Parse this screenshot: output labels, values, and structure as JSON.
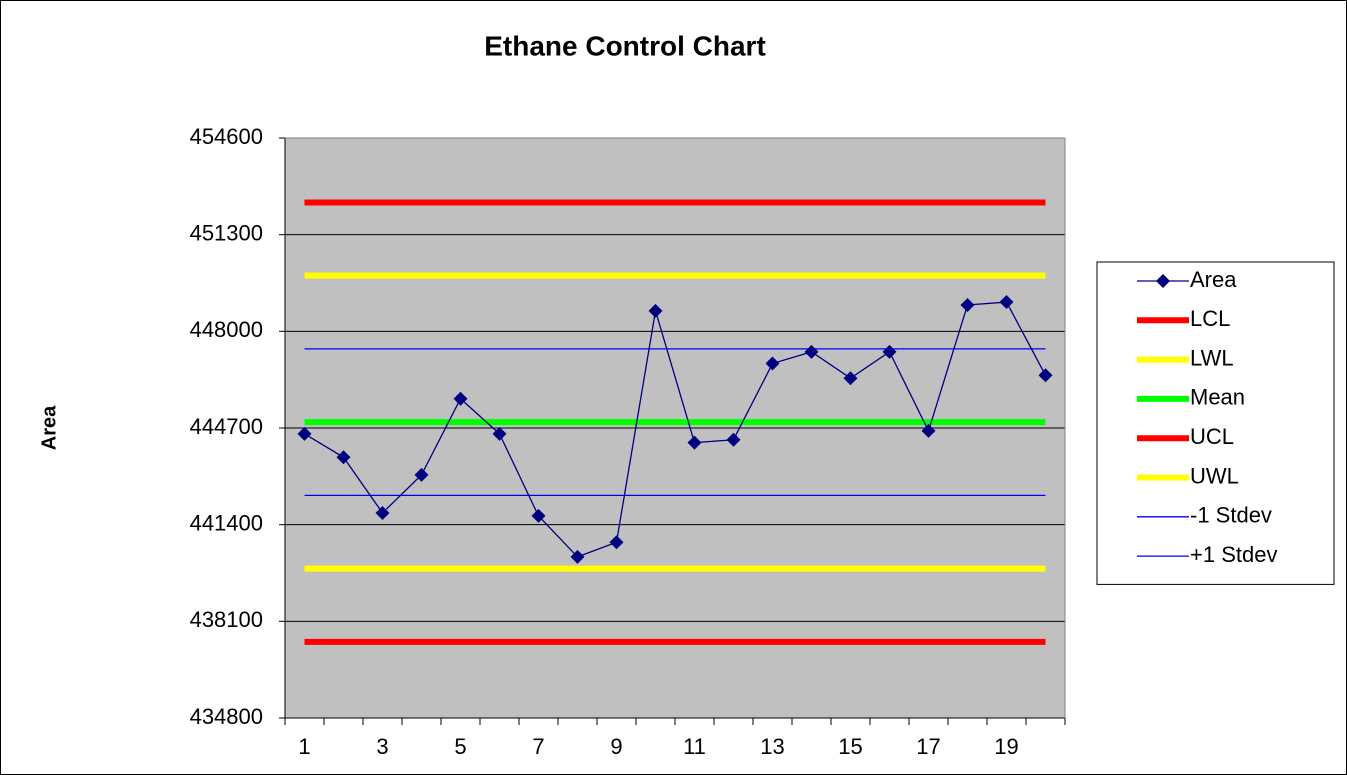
{
  "chart_data": {
    "type": "line",
    "title": "Ethane Control Chart",
    "y_label": "Area",
    "categories": [
      1,
      null,
      3,
      null,
      5,
      null,
      7,
      null,
      9,
      null,
      11,
      null,
      13,
      null,
      15,
      null,
      17,
      null,
      19,
      null
    ],
    "ylim": [
      434800,
      454600
    ],
    "yticks": [
      434800,
      438100,
      441400,
      444700,
      448000,
      451300,
      454600
    ],
    "grid": true,
    "background": "#c0c0c0",
    "legend": "right",
    "series": [
      {
        "name": "Area",
        "color": "#000080",
        "marker": "diamond",
        "values": [
          444500,
          443700,
          441800,
          443100,
          445700,
          444500,
          441700,
          440300,
          440800,
          448700,
          444200,
          444300,
          446900,
          447300,
          446400,
          447300,
          444600,
          448900,
          449000,
          446500
        ]
      },
      {
        "name": "LCL",
        "color": "#ff0000",
        "values": [
          437400,
          437400,
          437400,
          437400,
          437400,
          437400,
          437400,
          437400,
          437400,
          437400,
          437400,
          437400,
          437400,
          437400,
          437400,
          437400,
          437400,
          437400,
          437400,
          437400
        ]
      },
      {
        "name": "LWL",
        "color": "#ffff00",
        "values": [
          439900,
          439900,
          439900,
          439900,
          439900,
          439900,
          439900,
          439900,
          439900,
          439900,
          439900,
          439900,
          439900,
          439900,
          439900,
          439900,
          439900,
          439900,
          439900,
          439900
        ]
      },
      {
        "name": "Mean",
        "color": "#00ff00",
        "values": [
          444900,
          444900,
          444900,
          444900,
          444900,
          444900,
          444900,
          444900,
          444900,
          444900,
          444900,
          444900,
          444900,
          444900,
          444900,
          444900,
          444900,
          444900,
          444900,
          444900
        ]
      },
      {
        "name": "UCL",
        "color": "#ff0000",
        "values": [
          452400,
          452400,
          452400,
          452400,
          452400,
          452400,
          452400,
          452400,
          452400,
          452400,
          452400,
          452400,
          452400,
          452400,
          452400,
          452400,
          452400,
          452400,
          452400,
          452400
        ]
      },
      {
        "name": "UWL",
        "color": "#ffff00",
        "values": [
          449900,
          449900,
          449900,
          449900,
          449900,
          449900,
          449900,
          449900,
          449900,
          449900,
          449900,
          449900,
          449900,
          449900,
          449900,
          449900,
          449900,
          449900,
          449900,
          449900
        ]
      },
      {
        "name": "-1 Stdev",
        "color": "#0000ff",
        "values": [
          442400,
          442400,
          442400,
          442400,
          442400,
          442400,
          442400,
          442400,
          442400,
          442400,
          442400,
          442400,
          442400,
          442400,
          442400,
          442400,
          442400,
          442400,
          442400,
          442400
        ]
      },
      {
        "name": "+1 Stdev",
        "color": "#0000ff",
        "values": [
          447400,
          447400,
          447400,
          447400,
          447400,
          447400,
          447400,
          447400,
          447400,
          447400,
          447400,
          447400,
          447400,
          447400,
          447400,
          447400,
          447400,
          447400,
          447400,
          447400
        ]
      }
    ]
  }
}
